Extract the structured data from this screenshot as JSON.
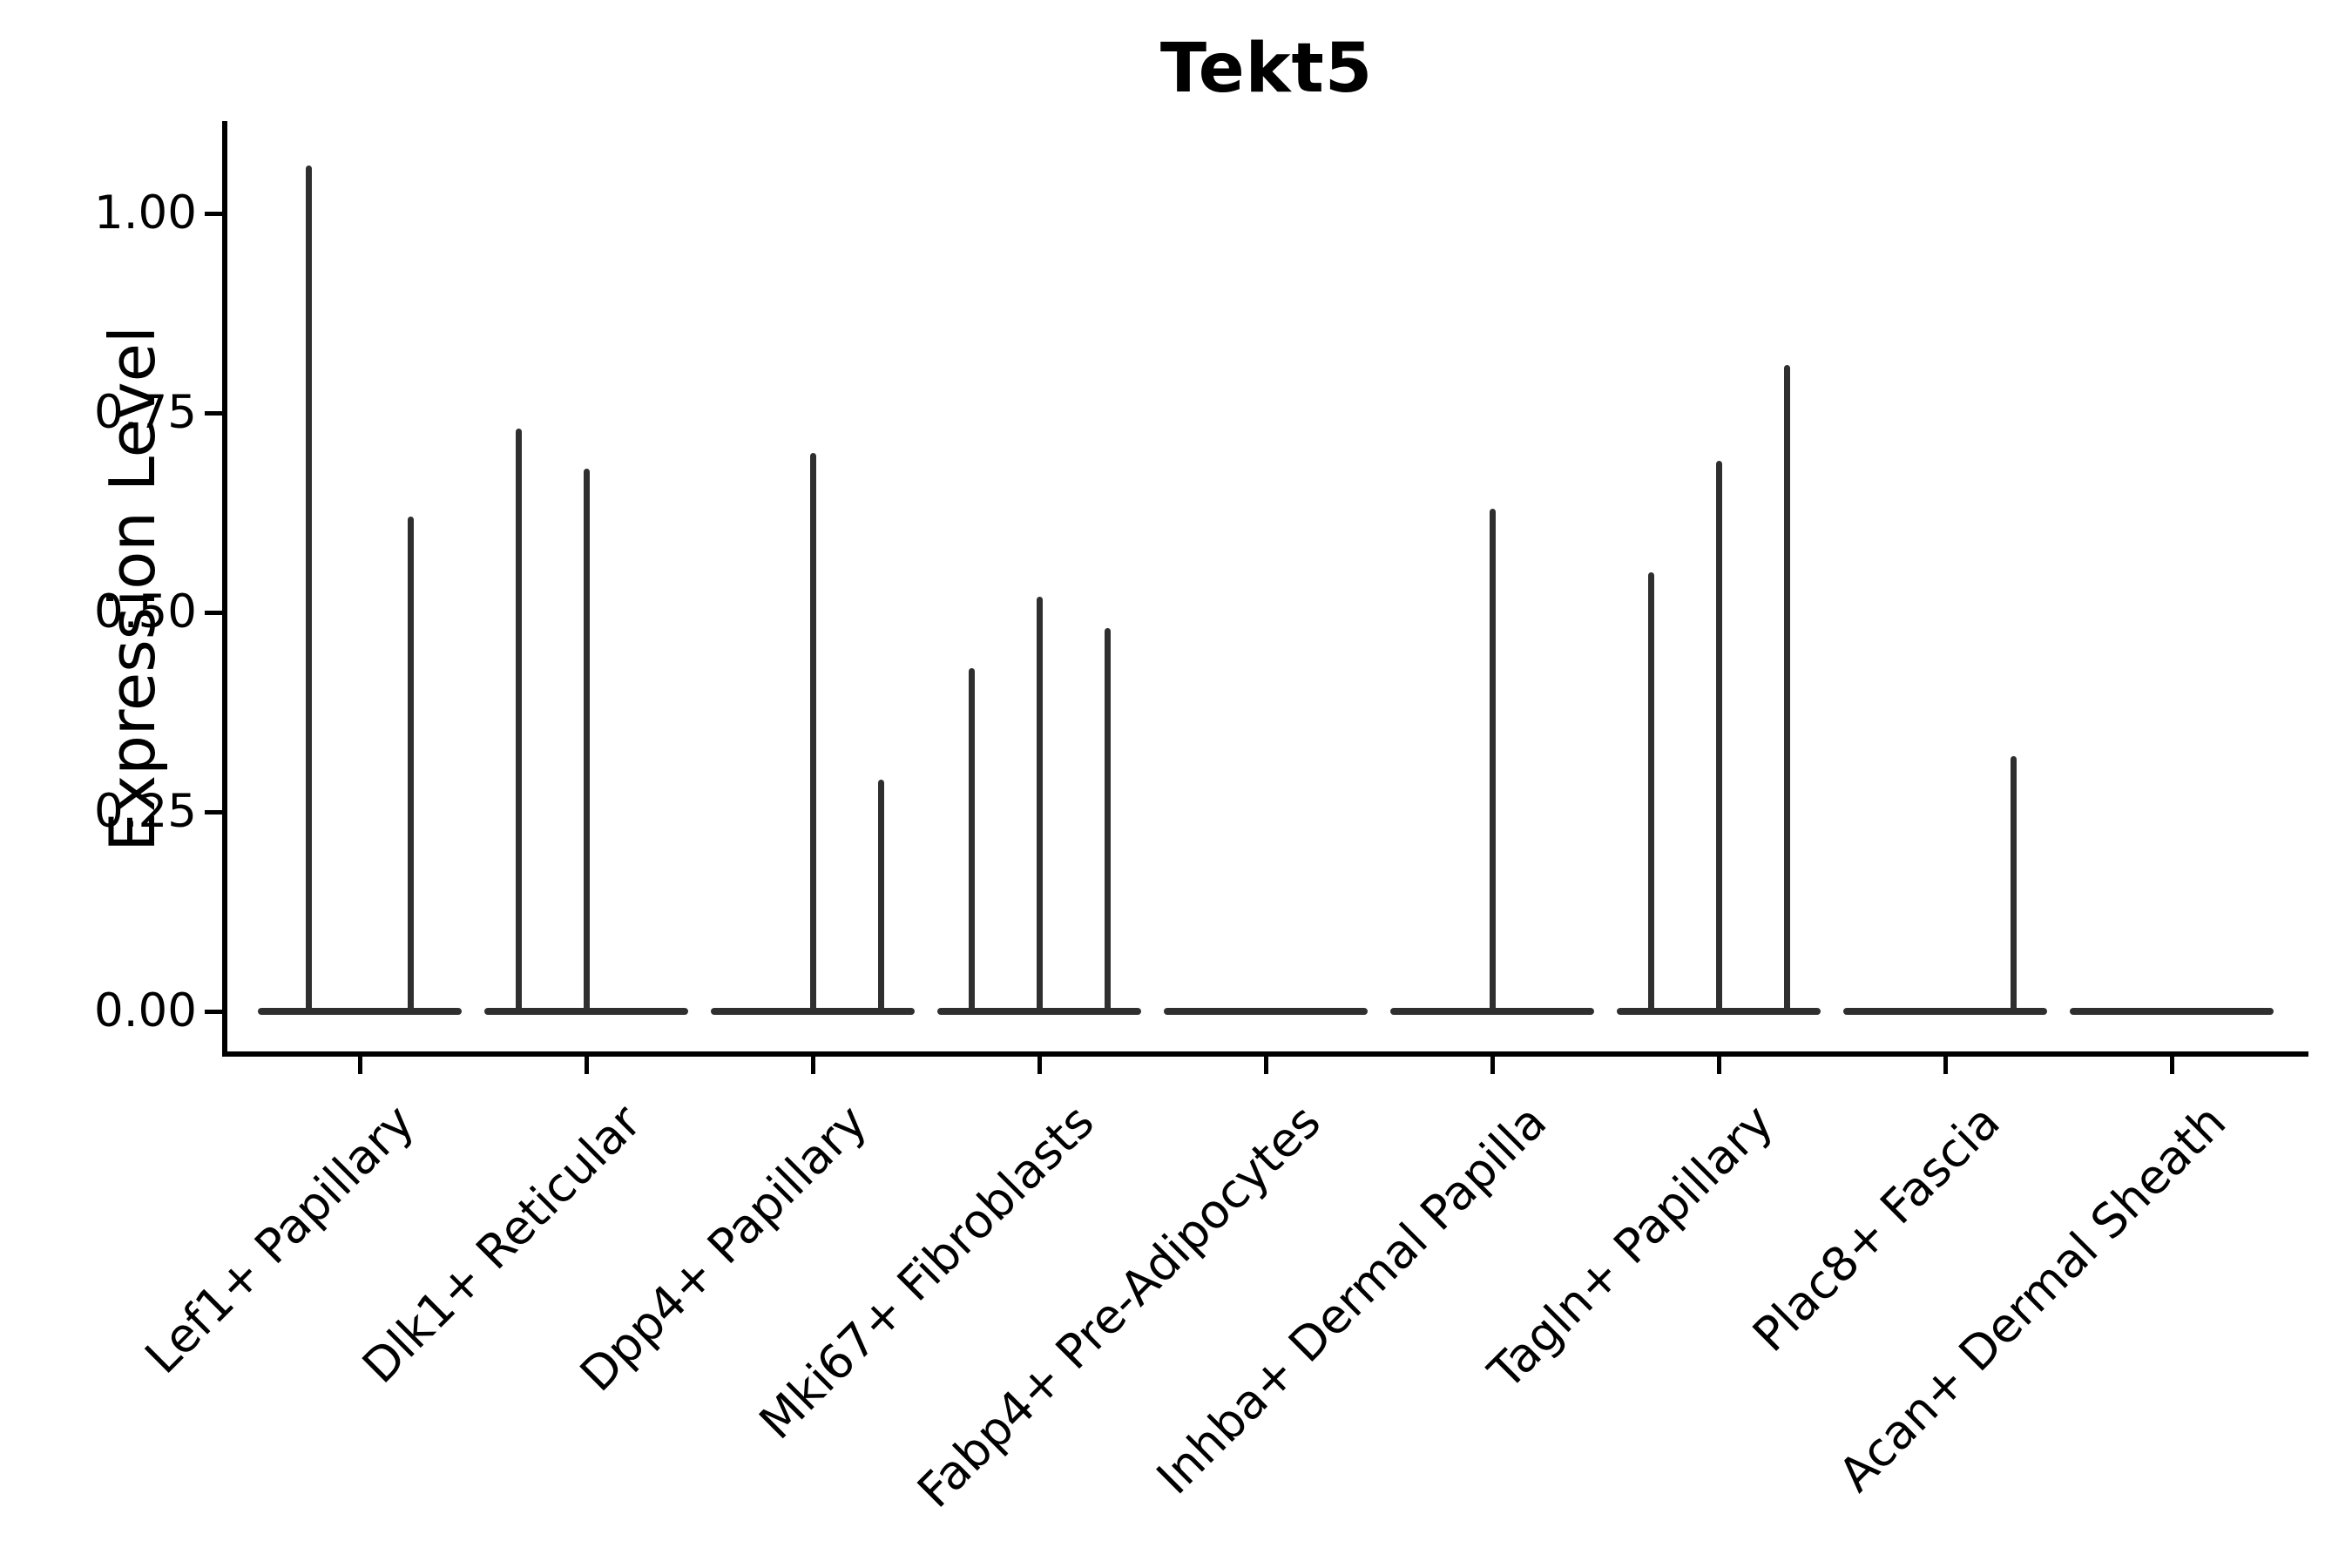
{
  "title": "Tekt5",
  "y_axis": {
    "label": "Expression Level",
    "tick_labels": [
      "0.00",
      "0.25",
      "0.50",
      "0.75",
      "1.00"
    ]
  },
  "chart_data": {
    "type": "violin",
    "title": "Tekt5",
    "xlabel": "",
    "ylabel": "Expression Level",
    "yticks": [
      0.0,
      0.25,
      0.5,
      0.75,
      1.0
    ],
    "ylim": [
      -0.054,
      1.113
    ],
    "grid": false,
    "legend": "none",
    "style": "flat violins at zero with thin max-expression spikes; black left/bottom spines only; x labels rotated 45deg",
    "categories": [
      "Lef1+ Papillary",
      "Dlk1+ Reticular",
      "Dpp4+ Papillary",
      "Mki67+ Fibroblasts",
      "Fabp4+ Pre-Adipocytes",
      "Inhba+ Dermal Papilla",
      "Tagln+ Papillary",
      "Plac8+ Fascia",
      "Acan+ Dermal Sheath"
    ],
    "baseline_halfwidth_frac": 0.45,
    "violins": [
      {
        "category": "Lef1+ Papillary",
        "spikes": [
          {
            "offset_frac": -0.225,
            "max": 1.06
          },
          {
            "offset_frac": 0.225,
            "max": 0.62
          }
        ]
      },
      {
        "category": "Dlk1+ Reticular",
        "spikes": [
          {
            "offset_frac": -0.3,
            "max": 0.73
          },
          {
            "offset_frac": 0.0,
            "max": 0.68
          }
        ]
      },
      {
        "category": "Dpp4+ Papillary",
        "spikes": [
          {
            "offset_frac": 0.0,
            "max": 0.7
          },
          {
            "offset_frac": 0.3,
            "max": 0.29
          }
        ]
      },
      {
        "category": "Mki67+ Fibroblasts",
        "spikes": [
          {
            "offset_frac": -0.3,
            "max": 0.43
          },
          {
            "offset_frac": 0.0,
            "max": 0.52
          },
          {
            "offset_frac": 0.3,
            "max": 0.48
          }
        ]
      },
      {
        "category": "Fabp4+ Pre-Adipocytes",
        "spikes": []
      },
      {
        "category": "Inhba+ Dermal Papilla",
        "spikes": [
          {
            "offset_frac": 0.0,
            "max": 0.63
          }
        ]
      },
      {
        "category": "Tagln+ Papillary",
        "spikes": [
          {
            "offset_frac": -0.3,
            "max": 0.55
          },
          {
            "offset_frac": 0.0,
            "max": 0.69
          },
          {
            "offset_frac": 0.3,
            "max": 0.81
          }
        ]
      },
      {
        "category": "Plac8+ Fascia",
        "spikes": [
          {
            "offset_frac": 0.3,
            "max": 0.32
          }
        ]
      },
      {
        "category": "Acan+ Dermal Sheath",
        "spikes": []
      }
    ],
    "colors": {
      "violin": "#2f2f2f",
      "axis": "#000000",
      "text": "#000000",
      "background": "#ffffff"
    }
  }
}
